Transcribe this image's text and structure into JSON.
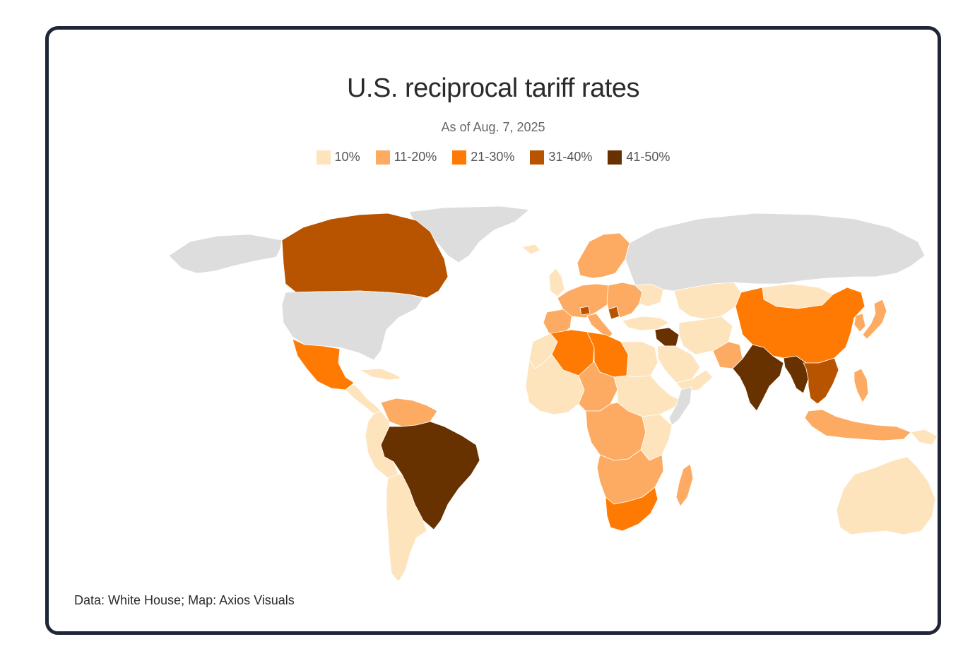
{
  "title": "U.S. reciprocal tariff rates",
  "subtitle": "As of Aug. 7, 2025",
  "legend": [
    {
      "label": "10%",
      "color": "#fde4bd"
    },
    {
      "label": "11-20%",
      "color": "#fdab62"
    },
    {
      "label": "21-30%",
      "color": "#fe7a03"
    },
    {
      "label": "31-40%",
      "color": "#b85400"
    },
    {
      "label": "41-50%",
      "color": "#673100"
    }
  ],
  "no_data_color": "#dddddd",
  "source": "Data: White House; Map: Axios Visuals",
  "regions": [
    {
      "name": "greenland",
      "category": "none"
    },
    {
      "name": "alaska",
      "category": "none"
    },
    {
      "name": "canada",
      "category": "31-40%"
    },
    {
      "name": "usa",
      "category": "none"
    },
    {
      "name": "mexico",
      "category": "21-30%"
    },
    {
      "name": "central-america",
      "category": "10%"
    },
    {
      "name": "caribbean",
      "category": "10%"
    },
    {
      "name": "venezuela-guyana",
      "category": "11-20%"
    },
    {
      "name": "brazil",
      "category": "41-50%"
    },
    {
      "name": "andes-west",
      "category": "10%"
    },
    {
      "name": "argentina-chile",
      "category": "10%"
    },
    {
      "name": "iceland",
      "category": "10%"
    },
    {
      "name": "uk-ireland",
      "category": "10%"
    },
    {
      "name": "scandinavia",
      "category": "11-20%"
    },
    {
      "name": "western-europe",
      "category": "11-20%"
    },
    {
      "name": "iberia",
      "category": "11-20%"
    },
    {
      "name": "italy",
      "category": "11-20%"
    },
    {
      "name": "switzerland",
      "category": "31-40%"
    },
    {
      "name": "serbia",
      "category": "31-40%"
    },
    {
      "name": "eastern-europe",
      "category": "11-20%"
    },
    {
      "name": "ukraine-belarus",
      "category": "10%"
    },
    {
      "name": "russia",
      "category": "none"
    },
    {
      "name": "kazakhstan-central-asia",
      "category": "10%"
    },
    {
      "name": "turkey",
      "category": "10%"
    },
    {
      "name": "syria-iraq",
      "category": "41-50%"
    },
    {
      "name": "iran-afghanistan",
      "category": "10%"
    },
    {
      "name": "saudi-arabia-gulf",
      "category": "10%"
    },
    {
      "name": "yemen-oman",
      "category": "10%"
    },
    {
      "name": "pakistan",
      "category": "11-20%"
    },
    {
      "name": "india",
      "category": "41-50%"
    },
    {
      "name": "myanmar-bangladesh",
      "category": "41-50%"
    },
    {
      "name": "mongolia",
      "category": "10%"
    },
    {
      "name": "china",
      "category": "21-30%"
    },
    {
      "name": "korea",
      "category": "11-20%"
    },
    {
      "name": "japan",
      "category": "11-20%"
    },
    {
      "name": "southeast-asia",
      "category": "31-40%"
    },
    {
      "name": "philippines",
      "category": "11-20%"
    },
    {
      "name": "indonesia-malaysia",
      "category": "11-20%"
    },
    {
      "name": "papua-new-guinea",
      "category": "10%"
    },
    {
      "name": "australia",
      "category": "10%"
    },
    {
      "name": "new-zealand",
      "category": "10%"
    },
    {
      "name": "morocco-west-sahara",
      "category": "10%"
    },
    {
      "name": "algeria",
      "category": "21-30%"
    },
    {
      "name": "libya",
      "category": "21-30%"
    },
    {
      "name": "egypt",
      "category": "10%"
    },
    {
      "name": "west-africa",
      "category": "10%"
    },
    {
      "name": "nigeria-chad",
      "category": "11-20%"
    },
    {
      "name": "sudan-horn",
      "category": "10%"
    },
    {
      "name": "somalia",
      "category": "none"
    },
    {
      "name": "central-africa",
      "category": "11-20%"
    },
    {
      "name": "east-africa",
      "category": "10%"
    },
    {
      "name": "southern-africa",
      "category": "11-20%"
    },
    {
      "name": "south-africa",
      "category": "21-30%"
    },
    {
      "name": "madagascar",
      "category": "11-20%"
    }
  ]
}
